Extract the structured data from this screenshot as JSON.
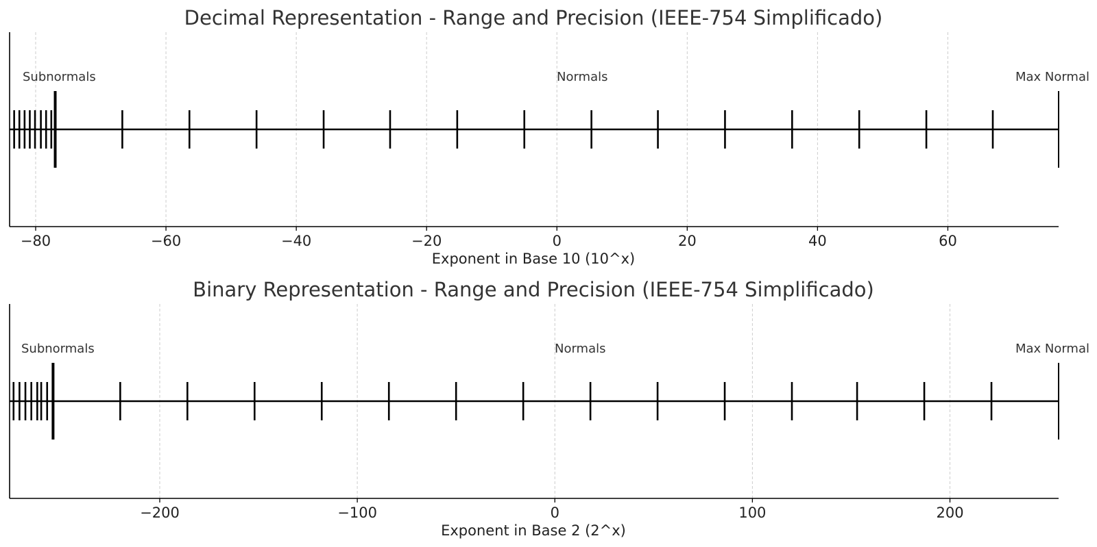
{
  "chart_data": [
    {
      "type": "scatter",
      "title": "Decimal Representation - Range and Precision (IEEE-754 Simplificado)",
      "xlabel": "Exponent in Base 10 (10^x)",
      "ylabel": "",
      "xlim": [
        -84,
        77
      ],
      "xticks": [
        -80,
        -60,
        -40,
        -20,
        0,
        20,
        40,
        60
      ],
      "xtick_labels": [
        "−80",
        "−60",
        "−40",
        "−20",
        "0",
        "20",
        "40",
        "60"
      ],
      "grid": "x-dashed",
      "baseline": 0,
      "subnormal_marks": [
        -83.3,
        -82.5,
        -81.7,
        -80.9,
        -80.1,
        -79.2,
        -78.4,
        -77.6
      ],
      "subnormal_boundary": -77,
      "normal_marks": [
        -66.7,
        -56.4,
        -46.1,
        -35.8,
        -25.6,
        -15.3,
        -5.0,
        5.3,
        15.5,
        25.8,
        36.1,
        46.4,
        56.7,
        66.9
      ],
      "max_normal": 77,
      "annotations": [
        {
          "text": "Subnormals",
          "x": -83,
          "align": "start"
        },
        {
          "text": "Normals",
          "x": 0,
          "align": "start"
        },
        {
          "text": "Max Normal",
          "x": 77,
          "align": "end"
        }
      ]
    },
    {
      "type": "scatter",
      "title": "Binary Representation - Range and Precision (IEEE-754 Simplificado)",
      "xlabel": "Exponent in Base 2 (2^x)",
      "ylabel": "",
      "xlim": [
        -276,
        255
      ],
      "xticks": [
        -200,
        -100,
        0,
        100,
        200
      ],
      "xtick_labels": [
        "−200",
        "−100",
        "0",
        "100",
        "200"
      ],
      "grid": "x-dashed",
      "baseline": 0,
      "subnormal_marks": [
        -274,
        -271,
        -268,
        -265,
        -262,
        -260,
        -257,
        -254
      ],
      "subnormal_boundary": -254,
      "normal_marks": [
        -220,
        -186,
        -152,
        -118,
        -84,
        -50,
        -16,
        18,
        52,
        86,
        120,
        153,
        187,
        221
      ],
      "max_normal": 255,
      "annotations": [
        {
          "text": "Subnormals",
          "x": -275,
          "align": "start"
        },
        {
          "text": "Normals",
          "x": 0,
          "align": "start"
        },
        {
          "text": "Max Normal",
          "x": 255,
          "align": "end"
        }
      ]
    }
  ]
}
